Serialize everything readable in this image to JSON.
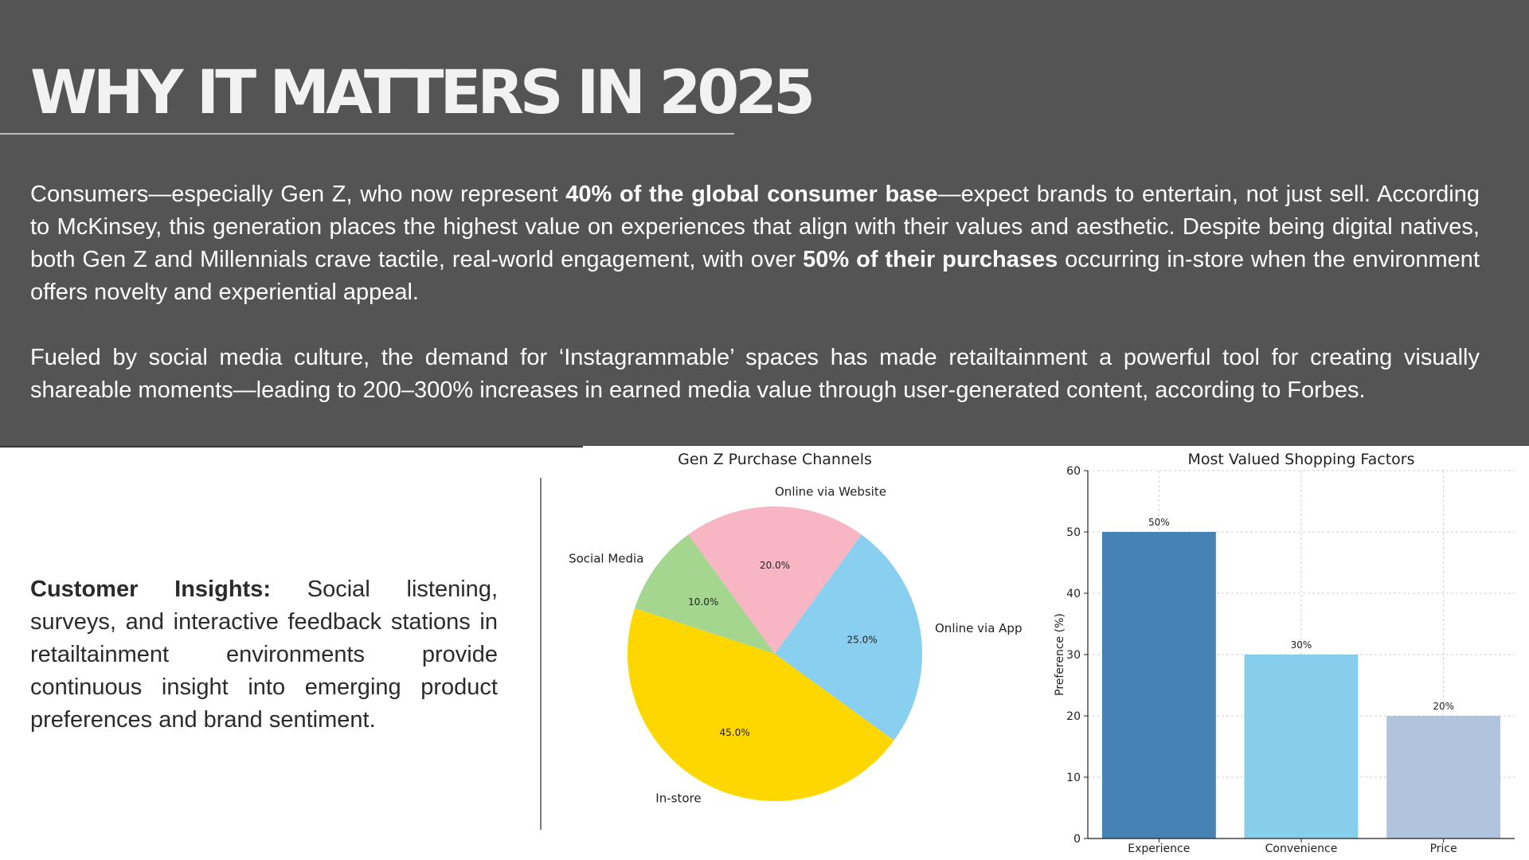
{
  "header": {
    "title": "WHY IT MATTERS IN 2025"
  },
  "body": {
    "para1": [
      {
        "text": "Consumers—especially Gen Z, who now represent ",
        "bold": false
      },
      {
        "text": "40% of the global consumer base",
        "bold": true
      },
      {
        "text": "—expect brands to entertain, not just sell. According to McKinsey, this generation places the highest value on experiences that align with their values and aesthetic. Despite being digital natives, both Gen Z and Millennials crave tactile, real-world engagement, with over ",
        "bold": false
      },
      {
        "text": "50% of their purchases",
        "bold": true
      },
      {
        "text": " occurring in-store when the environment offers novelty and experiential appeal.",
        "bold": false
      }
    ],
    "para2": "Fueled by social media culture, the demand for ‘Instagrammable’ spaces has made retailtainment a powerful tool for creating visually shareable moments—leading to 200–300% increases in earned media value through user-generated content, according to Forbes."
  },
  "insights": {
    "label": "Customer Insights:",
    "text": " Social listening, surveys, and interactive feedback stations in retailtainment environments provide continuous insight into emerging product preferences and brand sentiment."
  },
  "chart_data": [
    {
      "type": "pie",
      "title": "Gen Z Purchase Channels",
      "slices": [
        {
          "label": "In-store",
          "value": 45.0,
          "pct_label": "45.0%",
          "color": "#FFD700"
        },
        {
          "label": "Online via App",
          "value": 25.0,
          "pct_label": "25.0%",
          "color": "#89CFF0"
        },
        {
          "label": "Online via Website",
          "value": 20.0,
          "pct_label": "20.0%",
          "color": "#F8B6C4"
        },
        {
          "label": "Social Media",
          "value": 10.0,
          "pct_label": "10.0%",
          "color": "#A5D68F"
        }
      ]
    },
    {
      "type": "bar",
      "title": "Most Valued Shopping Factors",
      "categories": [
        "Experience",
        "Convenience",
        "Price"
      ],
      "values": [
        50,
        30,
        20
      ],
      "value_labels": [
        "50%",
        "30%",
        "20%"
      ],
      "colors": [
        "#4682B4",
        "#87CEEB",
        "#B0C4DE"
      ],
      "xlabel": "",
      "ylabel": "Preference (%)",
      "ylim": [
        0,
        60
      ],
      "yticks": [
        0,
        10,
        20,
        30,
        40,
        50,
        60
      ],
      "grid": true
    }
  ]
}
